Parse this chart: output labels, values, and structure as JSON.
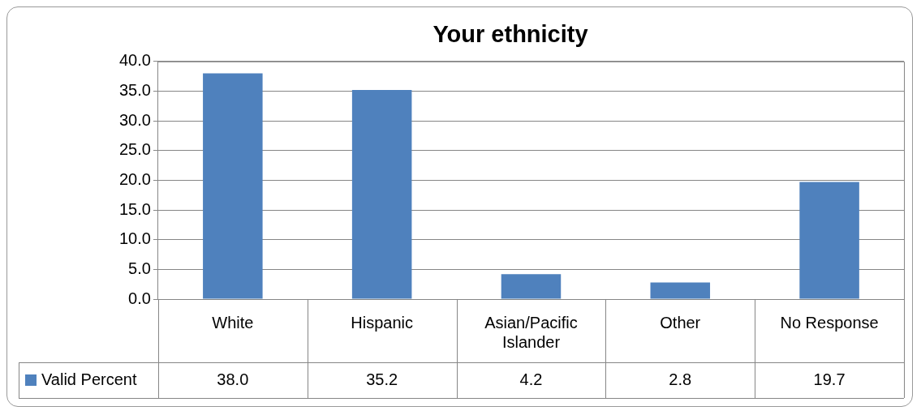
{
  "chart_data": {
    "type": "bar",
    "title": "Your ethnicity",
    "categories": [
      "White",
      "Hispanic",
      "Asian/Pacific Islander",
      "Other",
      "No Response"
    ],
    "series": [
      {
        "name": "Valid Percent",
        "color": "#4f81bd",
        "values": [
          38.0,
          35.2,
          4.2,
          2.8,
          19.7
        ],
        "value_labels": [
          "38.0",
          "35.2",
          "4.2",
          "2.8",
          "19.7"
        ]
      }
    ],
    "ylim": [
      0,
      40
    ],
    "yticks": [
      {
        "value": 0,
        "label": "0.0"
      },
      {
        "value": 5,
        "label": "5.0"
      },
      {
        "value": 10,
        "label": "10.0"
      },
      {
        "value": 15,
        "label": "15.0"
      },
      {
        "value": 20,
        "label": "20.0"
      },
      {
        "value": 25,
        "label": "25.0"
      },
      {
        "value": 30,
        "label": "30.0"
      },
      {
        "value": 35,
        "label": "35.0"
      },
      {
        "value": 40,
        "label": "40.0"
      }
    ],
    "grid": "y",
    "legend": "bottom left"
  }
}
